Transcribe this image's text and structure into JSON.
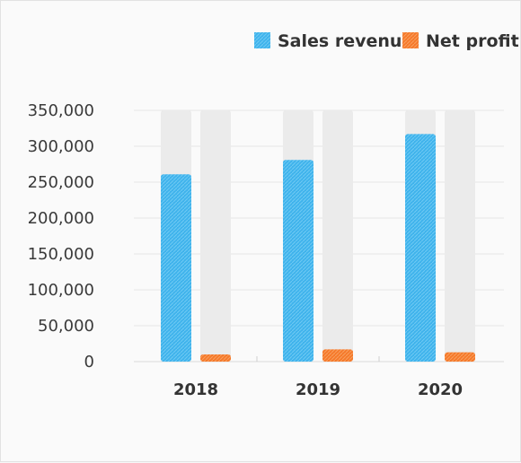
{
  "chart_data": {
    "type": "bar",
    "categories": [
      "2018",
      "2019",
      "2020"
    ],
    "series": [
      {
        "name": "Sales revenue",
        "values": [
          261000,
          281000,
          317000
        ],
        "color": "#3fb3ec"
      },
      {
        "name": "Net profit",
        "values": [
          10000,
          17000,
          13000
        ],
        "color": "#f5792a"
      }
    ],
    "ylim": [
      0,
      350000
    ],
    "yticks": [
      0,
      50000,
      100000,
      150000,
      200000,
      250000,
      300000,
      350000
    ],
    "ytick_labels": [
      "0",
      "50,000",
      "100,000",
      "150,000",
      "200,000",
      "250,000",
      "300,000",
      "350,000"
    ],
    "grid": true,
    "legend_position": "top-right",
    "bar_track_color": "#ebebeb"
  }
}
